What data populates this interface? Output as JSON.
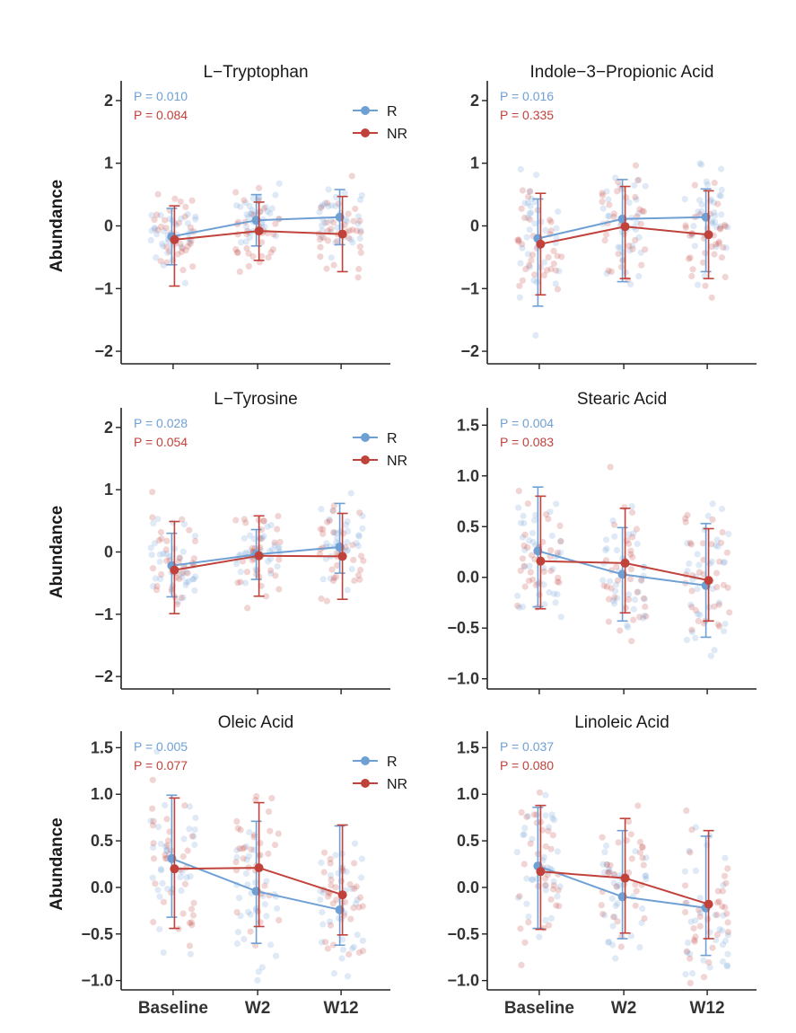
{
  "colors": {
    "R": "#6fa0d4",
    "NR": "#c0423b",
    "axis": "#222222"
  },
  "ylabel": "Abundance",
  "x_categories": [
    "Baseline",
    "W2",
    "W12"
  ],
  "legend": {
    "R": "R",
    "NR": "NR"
  },
  "chart_data": [
    {
      "type": "line",
      "title": "L−Tryptophan",
      "categories": [
        "Baseline",
        "W2",
        "W12"
      ],
      "ylim": [
        -2.2,
        2.2
      ],
      "yticks": [
        -2,
        -1,
        0,
        1,
        2
      ],
      "ytick_labels": [
        "−2",
        "−1",
        "0",
        "1",
        "2"
      ],
      "p_values": {
        "R": "P = 0.010",
        "NR": "P = 0.084"
      },
      "show_legend": true,
      "show_ylabel": true,
      "show_xlabels": false,
      "series": [
        {
          "name": "R",
          "values": [
            -0.17,
            0.09,
            0.14
          ],
          "lower": [
            -0.62,
            -0.32,
            -0.3
          ],
          "upper": [
            0.28,
            0.5,
            0.58
          ]
        },
        {
          "name": "NR",
          "values": [
            -0.22,
            -0.08,
            -0.13
          ],
          "lower": [
            -0.96,
            -0.55,
            -0.73
          ],
          "upper": [
            0.32,
            0.38,
            0.47
          ]
        }
      ]
    },
    {
      "type": "line",
      "title": "Indole−3−Propionic Acid",
      "categories": [
        "Baseline",
        "W2",
        "W12"
      ],
      "ylim": [
        -2.2,
        2.2
      ],
      "yticks": [
        -2,
        -1,
        0,
        1,
        2
      ],
      "ytick_labels": [
        "−2",
        "−1",
        "0",
        "1",
        "2"
      ],
      "p_values": {
        "R": "P = 0.016",
        "NR": "P = 0.335"
      },
      "show_legend": false,
      "show_ylabel": false,
      "show_xlabels": false,
      "series": [
        {
          "name": "R",
          "values": [
            -0.2,
            0.11,
            0.14
          ],
          "lower": [
            -1.28,
            -0.89,
            -0.73
          ],
          "upper": [
            0.43,
            0.74,
            0.59
          ]
        },
        {
          "name": "NR",
          "values": [
            -0.29,
            -0.01,
            -0.14
          ],
          "lower": [
            -1.1,
            -0.84,
            -0.84
          ],
          "upper": [
            0.52,
            0.63,
            0.56
          ]
        }
      ]
    },
    {
      "type": "line",
      "title": "L−Tyrosine",
      "categories": [
        "Baseline",
        "W2",
        "W12"
      ],
      "ylim": [
        -2.2,
        2.2
      ],
      "yticks": [
        -2,
        -1,
        0,
        1,
        2
      ],
      "ytick_labels": [
        "−2",
        "−1",
        "0",
        "1",
        "2"
      ],
      "p_values": {
        "R": "P = 0.028",
        "NR": "P = 0.054"
      },
      "show_legend": true,
      "show_ylabel": true,
      "show_xlabels": false,
      "series": [
        {
          "name": "R",
          "values": [
            -0.22,
            -0.04,
            0.08
          ],
          "lower": [
            -0.72,
            -0.44,
            -0.34
          ],
          "upper": [
            0.3,
            0.36,
            0.78
          ]
        },
        {
          "name": "NR",
          "values": [
            -0.29,
            -0.06,
            -0.07
          ],
          "lower": [
            -0.99,
            -0.71,
            -0.76
          ],
          "upper": [
            0.49,
            0.58,
            0.62
          ]
        }
      ]
    },
    {
      "type": "line",
      "title": "Stearic Acid",
      "categories": [
        "Baseline",
        "W2",
        "W12"
      ],
      "ylim": [
        -1.1,
        1.6
      ],
      "yticks": [
        -1.0,
        -0.5,
        0.0,
        0.5,
        1.0,
        1.5
      ],
      "ytick_labels": [
        "−1.0",
        "−0.5",
        "0.0",
        "0.5",
        "1.0",
        "1.5"
      ],
      "p_values": {
        "R": "P = 0.004",
        "NR": "P = 0.083"
      },
      "show_legend": false,
      "show_ylabel": false,
      "show_xlabels": false,
      "series": [
        {
          "name": "R",
          "values": [
            0.26,
            0.03,
            -0.08
          ],
          "lower": [
            -0.29,
            -0.43,
            -0.59
          ],
          "upper": [
            0.89,
            0.49,
            0.53
          ]
        },
        {
          "name": "NR",
          "values": [
            0.16,
            0.14,
            -0.03
          ],
          "lower": [
            -0.31,
            -0.35,
            -0.43
          ],
          "upper": [
            0.8,
            0.68,
            0.48
          ]
        }
      ]
    },
    {
      "type": "line",
      "title": "Oleic Acid",
      "categories": [
        "Baseline",
        "W2",
        "W12"
      ],
      "ylim": [
        -1.1,
        1.6
      ],
      "yticks": [
        -1.0,
        -0.5,
        0.0,
        0.5,
        1.0,
        1.5
      ],
      "ytick_labels": [
        "−1.0",
        "−0.5",
        "0.0",
        "0.5",
        "1.0",
        "1.5"
      ],
      "p_values": {
        "R": "P = 0.005",
        "NR": "P = 0.077"
      },
      "show_legend": true,
      "show_ylabel": true,
      "show_xlabels": true,
      "series": [
        {
          "name": "R",
          "values": [
            0.31,
            -0.04,
            -0.24
          ],
          "lower": [
            -0.32,
            -0.6,
            -0.62
          ],
          "upper": [
            0.99,
            0.71,
            0.66
          ]
        },
        {
          "name": "NR",
          "values": [
            0.2,
            0.21,
            -0.08
          ],
          "lower": [
            -0.44,
            -0.42,
            -0.51
          ],
          "upper": [
            0.96,
            0.91,
            0.67
          ]
        }
      ]
    },
    {
      "type": "line",
      "title": "Linoleic Acid",
      "categories": [
        "Baseline",
        "W2",
        "W12"
      ],
      "ylim": [
        -1.1,
        1.6
      ],
      "yticks": [
        -1.0,
        -0.5,
        0.0,
        0.5,
        1.0,
        1.5
      ],
      "ytick_labels": [
        "−1.0",
        "−0.5",
        "0.0",
        "0.5",
        "1.0",
        "1.5"
      ],
      "p_values": {
        "R": "P = 0.037",
        "NR": "P = 0.080"
      },
      "show_legend": false,
      "show_ylabel": false,
      "show_xlabels": true,
      "series": [
        {
          "name": "R",
          "values": [
            0.23,
            -0.1,
            -0.22
          ],
          "lower": [
            -0.44,
            -0.55,
            -0.73
          ],
          "upper": [
            0.86,
            0.61,
            0.55
          ]
        },
        {
          "name": "NR",
          "values": [
            0.17,
            0.1,
            -0.18
          ],
          "lower": [
            -0.45,
            -0.49,
            -0.55
          ],
          "upper": [
            0.88,
            0.74,
            0.61
          ]
        }
      ]
    }
  ]
}
